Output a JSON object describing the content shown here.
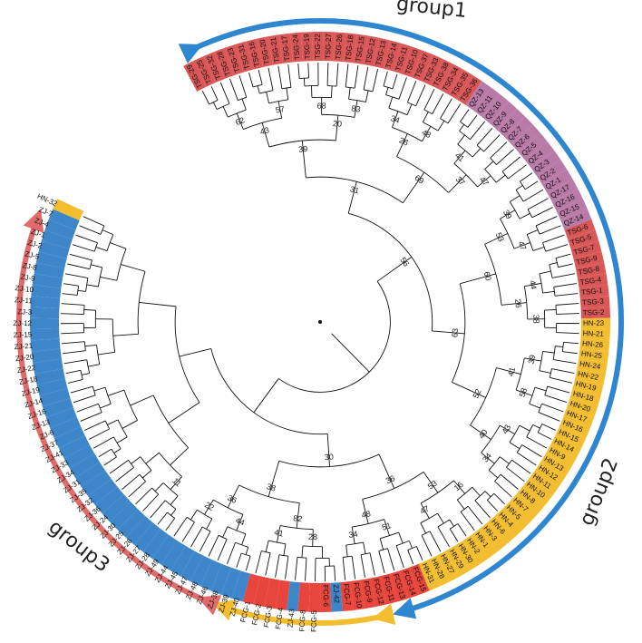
{
  "groups": [
    {
      "label": "group1",
      "color": "#2e86d0"
    },
    {
      "label": "group2",
      "color": "#f2bd2f"
    },
    {
      "label": "group3",
      "color": "#df6b6b"
    }
  ],
  "colors": {
    "ZJ": "#3d86c9",
    "FCG": "#e8453c",
    "HN": "#f2bd2f",
    "TSG": "#d95757",
    "QZ": "#b87aa6"
  },
  "leaves": [
    {
      "name": "TSG-29",
      "cls": "TSG"
    },
    {
      "name": "TSG-25",
      "cls": "TSG"
    },
    {
      "name": "TSG-32",
      "cls": "TSG"
    },
    {
      "name": "TSG-28",
      "cls": "TSG"
    },
    {
      "name": "TSG-23",
      "cls": "TSG"
    },
    {
      "name": "TSG-31",
      "cls": "TSG"
    },
    {
      "name": "TSG-16",
      "cls": "TSG"
    },
    {
      "name": "TSG-20",
      "cls": "TSG"
    },
    {
      "name": "TSG-21",
      "cls": "TSG"
    },
    {
      "name": "TSG-17",
      "cls": "TSG"
    },
    {
      "name": "TSG-24",
      "cls": "TSG"
    },
    {
      "name": "TSG-19",
      "cls": "TSG"
    },
    {
      "name": "TSG-22",
      "cls": "TSG"
    },
    {
      "name": "TSG-27",
      "cls": "TSG"
    },
    {
      "name": "TSG-26",
      "cls": "TSG"
    },
    {
      "name": "TSG-18",
      "cls": "TSG"
    },
    {
      "name": "TSG-15",
      "cls": "TSG"
    },
    {
      "name": "TSG-12",
      "cls": "TSG"
    },
    {
      "name": "TSG-13",
      "cls": "TSG"
    },
    {
      "name": "TSG-14",
      "cls": "TSG"
    },
    {
      "name": "TSG-11",
      "cls": "TSG"
    },
    {
      "name": "TSG-10",
      "cls": "TSG"
    },
    {
      "name": "TSG-37",
      "cls": "TSG"
    },
    {
      "name": "TSG-33",
      "cls": "TSG"
    },
    {
      "name": "TSG-38",
      "cls": "TSG"
    },
    {
      "name": "TSG-34",
      "cls": "TSG"
    },
    {
      "name": "TSG-35",
      "cls": "TSG"
    },
    {
      "name": "TSG-36",
      "cls": "TSG"
    },
    {
      "name": "QZ-13",
      "cls": "QZ"
    },
    {
      "name": "QZ-11",
      "cls": "QZ"
    },
    {
      "name": "QZ-10",
      "cls": "QZ"
    },
    {
      "name": "QZ-9",
      "cls": "QZ"
    },
    {
      "name": "QZ-8",
      "cls": "QZ"
    },
    {
      "name": "QZ-7",
      "cls": "QZ"
    },
    {
      "name": "QZ-6",
      "cls": "QZ"
    },
    {
      "name": "QZ-5",
      "cls": "QZ"
    },
    {
      "name": "QZ-4",
      "cls": "QZ"
    },
    {
      "name": "QZ-3",
      "cls": "QZ"
    },
    {
      "name": "QZ-2",
      "cls": "QZ"
    },
    {
      "name": "QZ-1",
      "cls": "QZ"
    },
    {
      "name": "QZ-17",
      "cls": "QZ"
    },
    {
      "name": "QZ-16",
      "cls": "QZ"
    },
    {
      "name": "QZ-15",
      "cls": "QZ"
    },
    {
      "name": "QZ-14",
      "cls": "QZ"
    },
    {
      "name": "TSG-6",
      "cls": "TSG"
    },
    {
      "name": "TSG-5",
      "cls": "TSG"
    },
    {
      "name": "TSG-7",
      "cls": "TSG"
    },
    {
      "name": "TSG-9",
      "cls": "TSG"
    },
    {
      "name": "TSG-8",
      "cls": "TSG"
    },
    {
      "name": "TSG-4",
      "cls": "TSG"
    },
    {
      "name": "TSG-1",
      "cls": "TSG"
    },
    {
      "name": "TSG-3",
      "cls": "TSG"
    },
    {
      "name": "TSG-2",
      "cls": "TSG"
    },
    {
      "name": "HN-23",
      "cls": "HN"
    },
    {
      "name": "HN-21",
      "cls": "HN"
    },
    {
      "name": "HN-26",
      "cls": "HN"
    },
    {
      "name": "HN-25",
      "cls": "HN"
    },
    {
      "name": "HN-24",
      "cls": "HN"
    },
    {
      "name": "HN-22",
      "cls": "HN"
    },
    {
      "name": "HN-19",
      "cls": "HN"
    },
    {
      "name": "HN-18",
      "cls": "HN"
    },
    {
      "name": "HN-20",
      "cls": "HN"
    },
    {
      "name": "HN-17",
      "cls": "HN"
    },
    {
      "name": "HN-16",
      "cls": "HN"
    },
    {
      "name": "HN-15",
      "cls": "HN"
    },
    {
      "name": "HN-14",
      "cls": "HN"
    },
    {
      "name": "HN-9",
      "cls": "HN"
    },
    {
      "name": "HN-13",
      "cls": "HN"
    },
    {
      "name": "HN-12",
      "cls": "HN"
    },
    {
      "name": "HN-11",
      "cls": "HN"
    },
    {
      "name": "HN-10",
      "cls": "HN"
    },
    {
      "name": "HN-8",
      "cls": "HN"
    },
    {
      "name": "HN-7",
      "cls": "HN"
    },
    {
      "name": "HN-5",
      "cls": "HN"
    },
    {
      "name": "HN-4",
      "cls": "HN"
    },
    {
      "name": "HN-6",
      "cls": "HN"
    },
    {
      "name": "HN-3",
      "cls": "HN"
    },
    {
      "name": "HN-1",
      "cls": "HN"
    },
    {
      "name": "HN-2",
      "cls": "HN"
    },
    {
      "name": "HN-30",
      "cls": "HN"
    },
    {
      "name": "HN-29",
      "cls": "HN"
    },
    {
      "name": "HN-27",
      "cls": "HN"
    },
    {
      "name": "HN-28",
      "cls": "HN"
    },
    {
      "name": "HN-31",
      "cls": "HN"
    },
    {
      "name": "FCG-15",
      "cls": "FCG"
    },
    {
      "name": "FCG-14",
      "cls": "FCG"
    },
    {
      "name": "FCG-13",
      "cls": "FCG"
    },
    {
      "name": "FCG-11",
      "cls": "FCG"
    },
    {
      "name": "FCG-12",
      "cls": "FCG"
    },
    {
      "name": "FCG-9",
      "cls": "FCG"
    },
    {
      "name": "FCG-10",
      "cls": "FCG"
    },
    {
      "name": "FCG-7",
      "cls": "FCG"
    },
    {
      "name": "ZJ-42",
      "cls": "ZJ"
    },
    {
      "name": "FCG-6",
      "cls": "FCG"
    },
    {
      "name": "FCG-5",
      "cls": "FCG"
    },
    {
      "name": "FCG-8",
      "cls": "FCG"
    },
    {
      "name": "ZJ-43",
      "cls": "ZJ"
    },
    {
      "name": "FCG-4",
      "cls": "FCG"
    },
    {
      "name": "FCG-3",
      "cls": "FCG"
    },
    {
      "name": "FCG-2",
      "cls": "FCG"
    },
    {
      "name": "FCG-1",
      "cls": "FCG"
    },
    {
      "name": "ZJ-40",
      "cls": "ZJ"
    },
    {
      "name": "ZJ-39",
      "cls": "ZJ"
    },
    {
      "name": "ZJ-38",
      "cls": "ZJ"
    },
    {
      "name": "ZJ-46",
      "cls": "ZJ"
    },
    {
      "name": "ZJ-48",
      "cls": "ZJ"
    },
    {
      "name": "ZJ-47",
      "cls": "ZJ"
    },
    {
      "name": "ZJ-45",
      "cls": "ZJ"
    },
    {
      "name": "ZJ-44",
      "cls": "ZJ"
    },
    {
      "name": "ZJ-49",
      "cls": "ZJ"
    },
    {
      "name": "ZJ-28",
      "cls": "ZJ"
    },
    {
      "name": "ZJ-27",
      "cls": "ZJ"
    },
    {
      "name": "ZJ-26",
      "cls": "ZJ"
    },
    {
      "name": "ZJ-25",
      "cls": "ZJ"
    },
    {
      "name": "ZJ-30",
      "cls": "ZJ"
    },
    {
      "name": "ZJ-24",
      "cls": "ZJ"
    },
    {
      "name": "ZJ-36",
      "cls": "ZJ"
    },
    {
      "name": "ZJ-32",
      "cls": "ZJ"
    },
    {
      "name": "ZJ-35",
      "cls": "ZJ"
    },
    {
      "name": "ZJ-31",
      "cls": "ZJ"
    },
    {
      "name": "ZJ-34",
      "cls": "ZJ"
    },
    {
      "name": "ZJ-33",
      "cls": "ZJ"
    },
    {
      "name": "ZJ-41",
      "cls": "ZJ"
    },
    {
      "name": "ZJ-37",
      "cls": "ZJ"
    },
    {
      "name": "ZJ-6",
      "cls": "ZJ"
    },
    {
      "name": "ZJ-13",
      "cls": "ZJ"
    },
    {
      "name": "ZJ-16",
      "cls": "ZJ"
    },
    {
      "name": "ZJ-14",
      "cls": "ZJ"
    },
    {
      "name": "ZJ-19",
      "cls": "ZJ"
    },
    {
      "name": "ZJ-18",
      "cls": "ZJ"
    },
    {
      "name": "ZJ-22",
      "cls": "ZJ"
    },
    {
      "name": "ZJ-20",
      "cls": "ZJ"
    },
    {
      "name": "ZJ-21",
      "cls": "ZJ"
    },
    {
      "name": "ZJ-15",
      "cls": "ZJ"
    },
    {
      "name": "ZJ-12",
      "cls": "ZJ"
    },
    {
      "name": "ZJ-3",
      "cls": "ZJ"
    },
    {
      "name": "ZJ-11",
      "cls": "ZJ"
    },
    {
      "name": "ZJ-10",
      "cls": "ZJ"
    },
    {
      "name": "ZJ-9",
      "cls": "ZJ"
    },
    {
      "name": "ZJ-8",
      "cls": "ZJ"
    },
    {
      "name": "ZJ-5",
      "cls": "ZJ"
    },
    {
      "name": "ZJ-2",
      "cls": "ZJ"
    },
    {
      "name": "ZJ-1",
      "cls": "ZJ"
    },
    {
      "name": "ZJ-4",
      "cls": "ZJ"
    },
    {
      "name": "ZJ-7",
      "cls": "ZJ"
    },
    {
      "name": "HN-32",
      "cls": "HN"
    }
  ],
  "bootstraps": [
    "62",
    "57",
    "43",
    "68",
    "83",
    "20",
    "39",
    "34",
    "48",
    "26",
    "41",
    "47",
    "37",
    "69",
    "31",
    "39",
    "47",
    "53",
    "44",
    "38",
    "26",
    "60",
    "39",
    "58",
    "41",
    "43",
    "34",
    "40",
    "52",
    "63",
    "56",
    "16",
    "47",
    "53",
    "51",
    "34",
    "48",
    "36",
    "28",
    "41",
    "82",
    "44",
    "22",
    "36",
    "38",
    "30",
    "11"
  ]
}
